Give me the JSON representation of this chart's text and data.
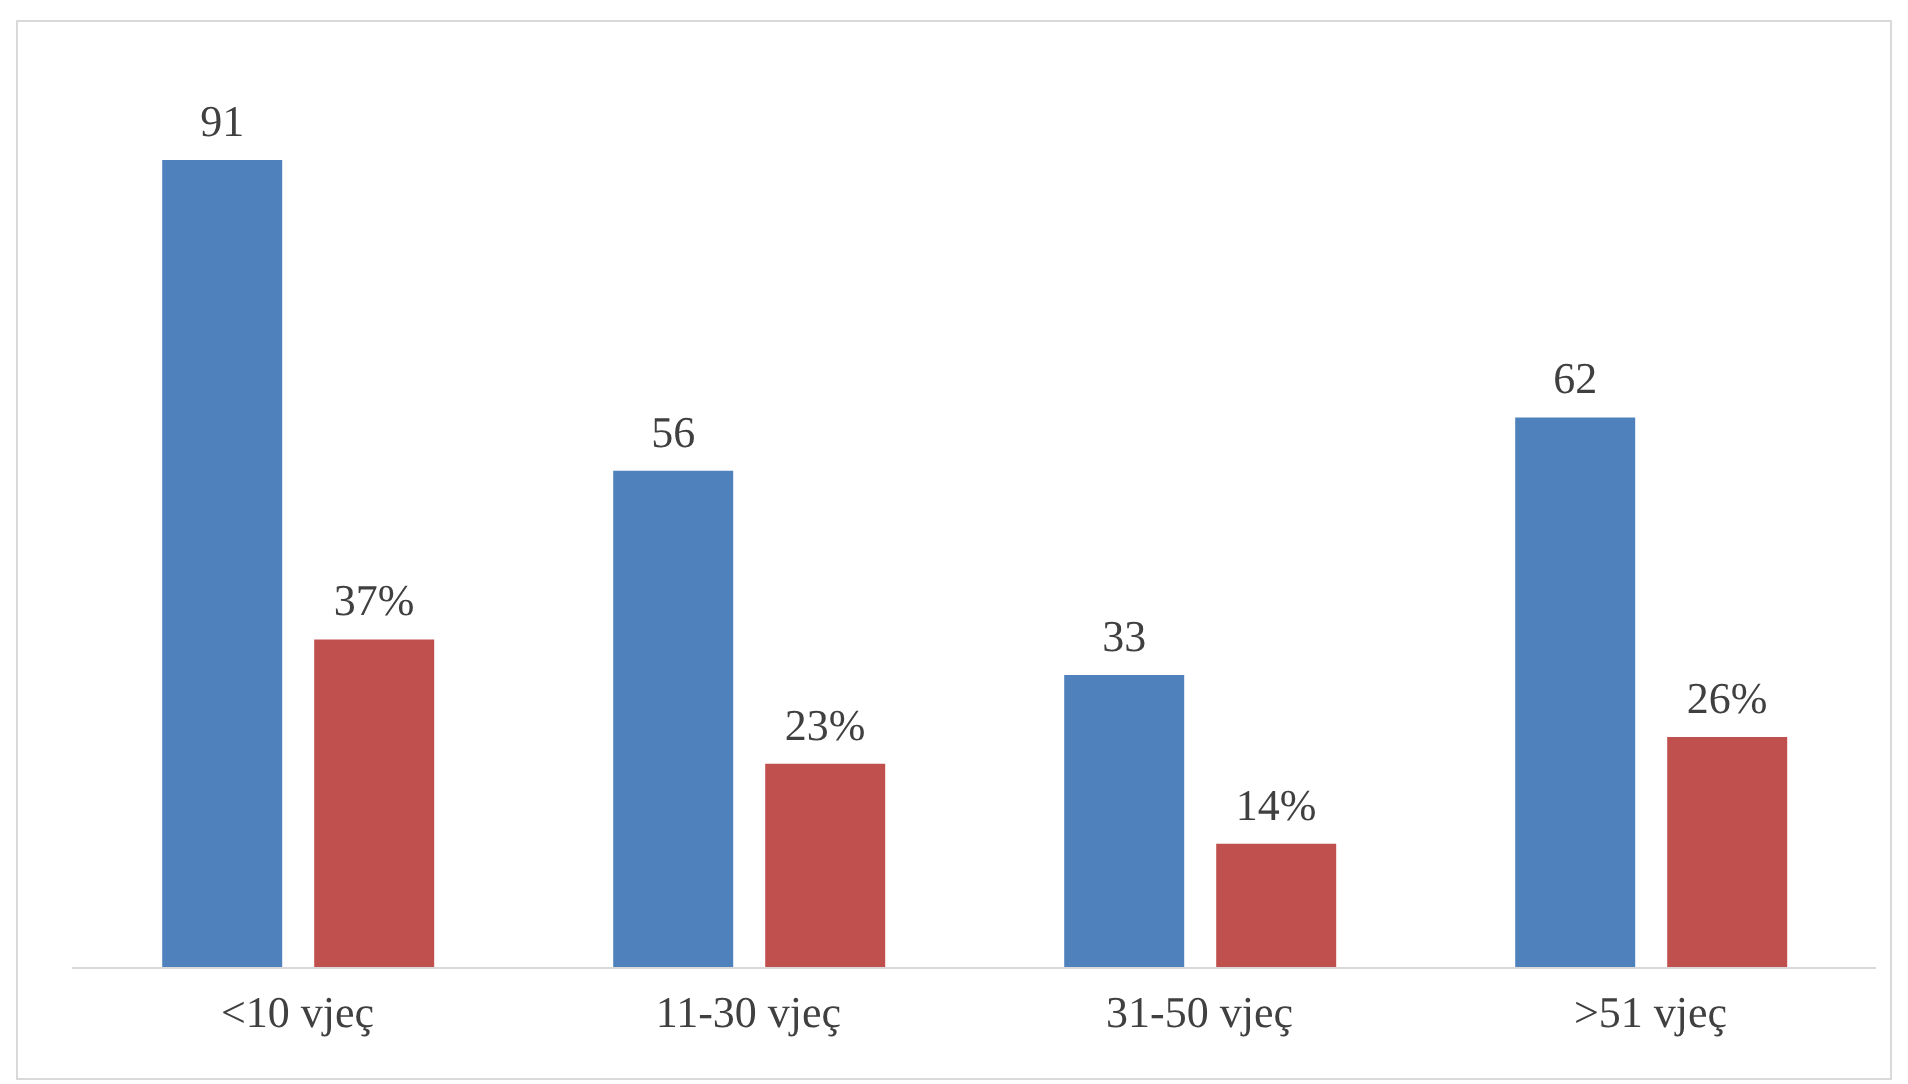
{
  "chart_data": {
    "type": "bar",
    "categories": [
      "<10 vjeç",
      "11-30 vjeç",
      "31-50 vjeç",
      ">51 vjeç"
    ],
    "series": [
      {
        "color": "#4f81bd",
        "values": [
          91,
          56,
          33,
          62
        ],
        "value_labels": [
          "91",
          "56",
          "33",
          "62"
        ]
      },
      {
        "color": "#c0504d",
        "values": [
          37,
          23,
          14,
          26
        ],
        "value_labels": [
          "37%",
          "23%",
          "14%",
          "26%"
        ]
      }
    ],
    "tick_labels": "x"
  }
}
